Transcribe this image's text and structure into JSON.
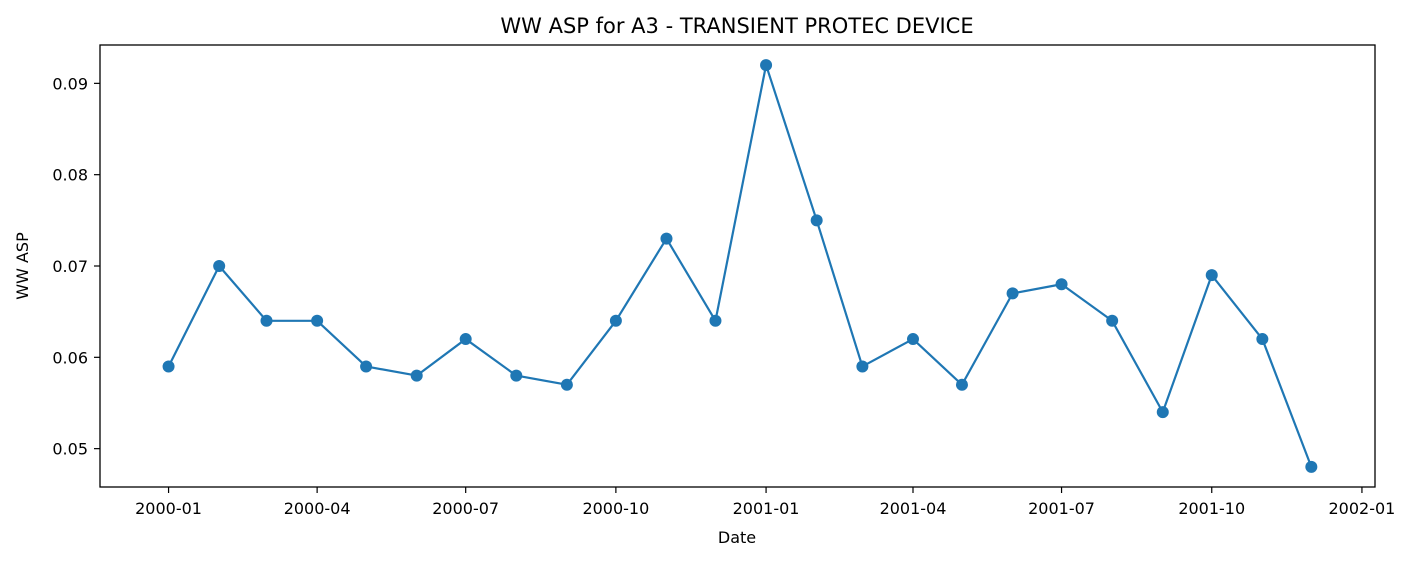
{
  "chart_data": {
    "type": "line",
    "title": "WW ASP for A3 - TRANSIENT PROTEC DEVICE",
    "xlabel": "Date",
    "ylabel": "WW ASP",
    "x": [
      "2000-01-01",
      "2000-02-01",
      "2000-03-01",
      "2000-04-01",
      "2000-05-01",
      "2000-06-01",
      "2000-07-01",
      "2000-08-01",
      "2000-09-01",
      "2000-10-01",
      "2000-11-01",
      "2000-12-01",
      "2001-01-01",
      "2001-02-01",
      "2001-03-01",
      "2001-04-01",
      "2001-05-01",
      "2001-06-01",
      "2001-07-01",
      "2001-08-01",
      "2001-09-01",
      "2001-10-01",
      "2001-11-01",
      "2001-12-01"
    ],
    "series": [
      {
        "values": [
          0.059,
          0.07,
          0.064,
          0.064,
          0.059,
          0.058,
          0.062,
          0.058,
          0.057,
          0.064,
          0.073,
          0.064,
          0.092,
          0.075,
          0.059,
          0.062,
          0.057,
          0.067,
          0.068,
          0.064,
          0.054,
          0.069,
          0.062,
          0.048
        ],
        "color": "#1f77b4",
        "marker": "circle"
      }
    ],
    "xticks": [
      "2000-01",
      "2000-04",
      "2000-07",
      "2000-10",
      "2001-01",
      "2001-04",
      "2001-07",
      "2001-10",
      "2002-01"
    ],
    "yticks": [
      "0.05",
      "0.06",
      "0.07",
      "0.08",
      "0.09"
    ],
    "xlim": [
      "1999-11-20",
      "2002-01-09"
    ],
    "ylim": [
      0.0458,
      0.0942
    ],
    "grid": false
  }
}
